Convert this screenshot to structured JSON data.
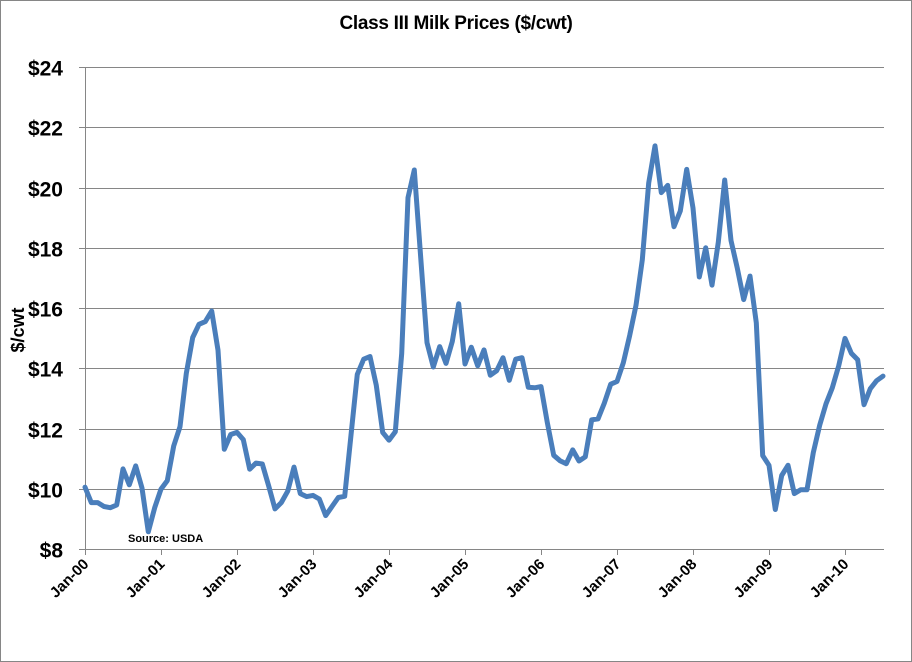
{
  "chart": {
    "title": "Class III Milk Prices ($/cwt)",
    "ylabel": "$/cwt",
    "annotation": "Source: USDA",
    "line_color": "#4a7ebb",
    "grid_color": "#868686",
    "border_color": "#868686"
  },
  "chart_data": {
    "type": "line",
    "title": "Class III Milk Prices ($/cwt)",
    "xlabel": "",
    "ylabel": "$/cwt",
    "ylim": [
      8,
      24
    ],
    "yticks": [
      "$8",
      "$10",
      "$12",
      "$14",
      "$16",
      "$18",
      "$20",
      "$22",
      "$24"
    ],
    "ytick_values": [
      8,
      10,
      12,
      14,
      16,
      18,
      20,
      22,
      24
    ],
    "xticks": [
      "Jan-00",
      "Jan-01",
      "Jan-02",
      "Jan-03",
      "Jan-04",
      "Jan-05",
      "Jan-06",
      "Jan-07",
      "Jan-08",
      "Jan-09",
      "Jan-10"
    ],
    "grid": true,
    "legend": null,
    "annotations": [
      "Source: USDA"
    ],
    "x_start": "Jan-00",
    "x_frequency": "monthly",
    "series": [
      {
        "name": "Class III Milk Price",
        "values": [
          10.05,
          9.54,
          9.54,
          9.41,
          9.37,
          9.46,
          10.66,
          10.13,
          10.76,
          10.02,
          8.57,
          9.37,
          9.99,
          10.27,
          11.42,
          12.06,
          13.83,
          15.02,
          15.46,
          15.55,
          15.9,
          14.6,
          11.31,
          11.8,
          11.87,
          11.63,
          10.65,
          10.85,
          10.82,
          10.09,
          9.33,
          9.54,
          9.92,
          10.72,
          9.84,
          9.74,
          9.78,
          9.66,
          9.11,
          9.41,
          9.71,
          9.75,
          11.78,
          13.8,
          14.3,
          14.39,
          13.43,
          11.87,
          11.61,
          11.89,
          14.49,
          19.66,
          20.58,
          17.68,
          14.85,
          14.04,
          14.72,
          14.16,
          14.89,
          16.14,
          14.14,
          14.7,
          14.08,
          14.61,
          13.77,
          13.92,
          14.35,
          13.6,
          14.3,
          14.35,
          13.37,
          13.35,
          13.39,
          12.2,
          11.11,
          10.93,
          10.83,
          11.29,
          10.92,
          11.06,
          12.29,
          12.32,
          12.84,
          13.47,
          13.56,
          14.18,
          15.09,
          16.09,
          17.6,
          20.15,
          21.38,
          19.83,
          20.07,
          18.7,
          19.22,
          20.6,
          19.32,
          17.03,
          18.0,
          16.76,
          18.18,
          20.25,
          18.24,
          17.32,
          16.28,
          17.06,
          15.51,
          11.1,
          10.78,
          9.31,
          10.44,
          10.78,
          9.84,
          9.97,
          9.97,
          11.2,
          12.11,
          12.82,
          13.35,
          14.08,
          14.99,
          14.5,
          14.28,
          12.79,
          13.32,
          13.59,
          13.74
        ]
      }
    ]
  }
}
